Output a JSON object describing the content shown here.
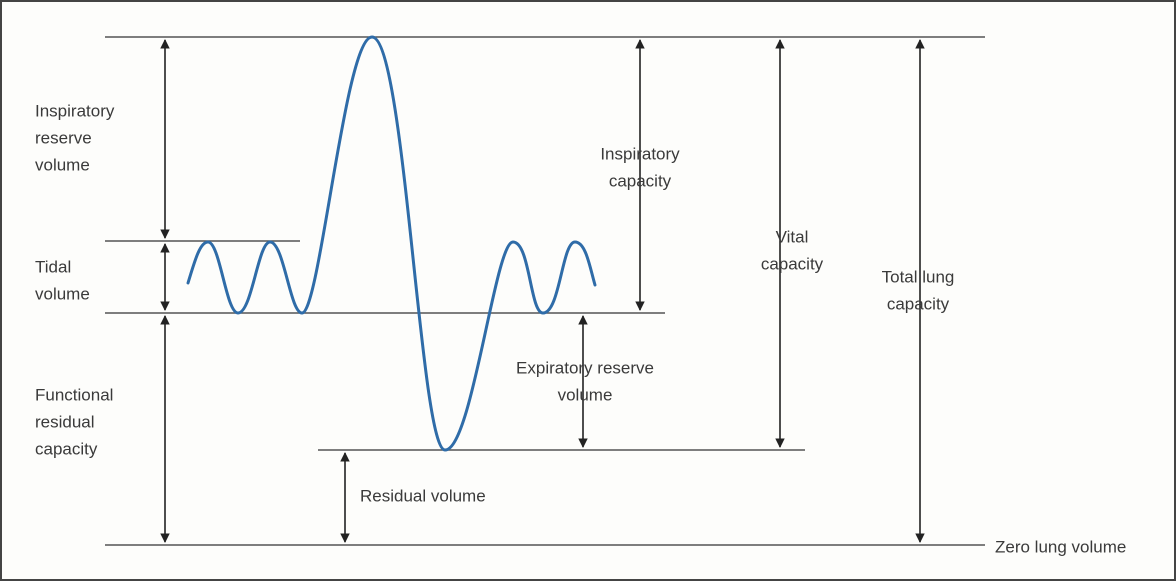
{
  "labels": {
    "inspiratory_reserve_volume": [
      "Inspiratory",
      "reserve",
      "volume"
    ],
    "tidal_volume": [
      "Tidal",
      "volume"
    ],
    "functional_residual_capacity": [
      "Functional",
      "residual",
      "capacity"
    ],
    "inspiratory_capacity": [
      "Inspiratory",
      "capacity"
    ],
    "vital_capacity": [
      "Vital",
      "capacity"
    ],
    "total_lung_capacity": [
      "Total lung",
      "capacity"
    ],
    "expiratory_reserve_volume": [
      "Expiratory reserve",
      "volume"
    ],
    "residual_volume": [
      "Residual volume"
    ],
    "zero_lung_volume": [
      "Zero lung volume"
    ]
  }
}
